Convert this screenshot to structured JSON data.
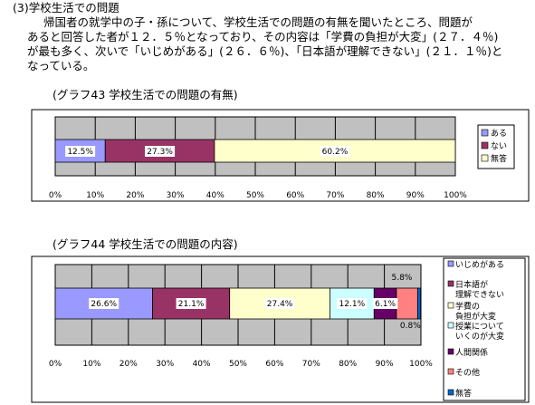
{
  "text": {
    "heading": "(3)学校生活での問題",
    "para": [
      "帰国者の就学中の子・孫について、学校生活での問題の有無を聞いたところ、問題が",
      "あると回答した者が１２．５％となっており、その内容は「学費の負担が大変」(２７．４％)",
      "が最も多く、次いで「いじめがある」(２６．６％)、「日本語が理解できない」(２１．１％)と",
      "なっている。"
    ]
  },
  "chart_data": [
    {
      "type": "bar",
      "orientation": "horizontal-stacked",
      "title": "(グラフ43  学校生活での問題の有無)",
      "xlim": [
        0,
        100
      ],
      "ticks": [
        "0%",
        "10%",
        "20%",
        "30%",
        "40%",
        "50%",
        "60%",
        "70%",
        "80%",
        "90%",
        "100%"
      ],
      "grid": true,
      "legend_position": "right",
      "series": [
        {
          "name": "ある",
          "value": 12.5,
          "label": "12.5%",
          "color": "#9999ff"
        },
        {
          "name": "ない",
          "value": 27.3,
          "label": "27.3%",
          "color": "#993366"
        },
        {
          "name": "無答",
          "value": 60.2,
          "label": "60.2%",
          "color": "#ffffcc"
        }
      ]
    },
    {
      "type": "bar",
      "orientation": "horizontal-stacked",
      "title": "(グラフ44  学校生活での問題の内容)",
      "xlim": [
        0,
        100
      ],
      "ticks": [
        "0%",
        "10%",
        "20%",
        "30%",
        "40%",
        "50%",
        "60%",
        "70%",
        "80%",
        "90%",
        "100%"
      ],
      "grid": true,
      "legend_position": "right",
      "series": [
        {
          "name": "いじめがある",
          "legend_lines": [
            "いじめがある"
          ],
          "value": 26.6,
          "label": "26.6%",
          "color": "#9999ff"
        },
        {
          "name": "日本語が理解できない",
          "legend_lines": [
            "日本語が",
            "理解できない"
          ],
          "value": 21.1,
          "label": "21.1%",
          "color": "#993366"
        },
        {
          "name": "学費の負担が大変",
          "legend_lines": [
            "学費の",
            "負担が大変"
          ],
          "value": 27.4,
          "label": "27.4%",
          "color": "#ffffcc"
        },
        {
          "name": "授業についていくのが大変",
          "legend_lines": [
            "授業について",
            "いくのが大変"
          ],
          "value": 12.1,
          "label": "12.1%",
          "color": "#ccffff"
        },
        {
          "name": "人間関係",
          "legend_lines": [
            "人間関係"
          ],
          "value": 6.1,
          "label": "6.1%",
          "color": "#660066"
        },
        {
          "name": "その他",
          "legend_lines": [
            "その他"
          ],
          "value": 5.8,
          "label": "5.8%",
          "color": "#ff8080"
        },
        {
          "name": "無答",
          "legend_lines": [
            "無答"
          ],
          "value": 0.8,
          "label": "0.8%",
          "color": "#0066cc"
        }
      ]
    }
  ]
}
